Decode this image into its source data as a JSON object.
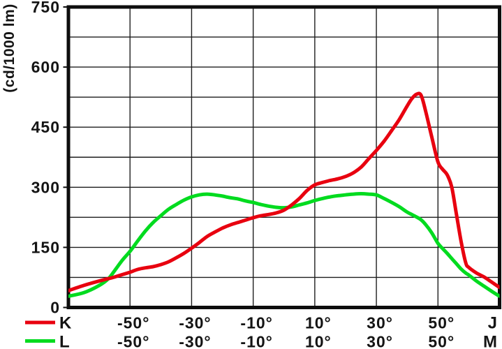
{
  "chart_data": {
    "type": "line",
    "title": "",
    "ylabel": "(cd/1000 lm)",
    "xlabel": "",
    "ylim": [
      0,
      750
    ],
    "xlim": [
      -70,
      70
    ],
    "y_major_ticks": [
      0,
      150,
      300,
      450,
      600,
      750
    ],
    "y_minor_step": 75,
    "x_grid_step_deg": 20,
    "x_tick_values": [
      -50,
      -30,
      -10,
      10,
      30,
      50
    ],
    "x_tick_labels": [
      "-50°",
      "-30°",
      "-10°",
      "10°",
      "30°",
      "50°"
    ],
    "grid": "on",
    "legend_position": "bottom-left",
    "angles_deg": [
      -70,
      -65,
      -60,
      -57,
      -55,
      -52.5,
      -50,
      -47.5,
      -45,
      -42.5,
      -40,
      -37.5,
      -35,
      -32.5,
      -30,
      -27.5,
      -25,
      -22.5,
      -20,
      -17.5,
      -15,
      -12.5,
      -10,
      -7.5,
      -5,
      -2.5,
      0,
      2.5,
      5,
      7.5,
      10,
      12.5,
      15,
      17.5,
      20,
      22.5,
      25,
      27.5,
      30,
      32.5,
      35,
      37.5,
      40,
      41.5,
      43,
      44.5,
      46,
      48,
      50,
      51.5,
      53,
      54.5,
      56,
      57.5,
      59,
      60,
      62.5,
      65,
      67.5,
      70
    ],
    "series": [
      {
        "name": "K",
        "color": "#e8000f",
        "axis_end_label": "J",
        "values": [
          42,
          55,
          66,
          72,
          76,
          82,
          88,
          95,
          99,
          102,
          107,
          114,
          124,
          135,
          148,
          162,
          177,
          188,
          198,
          206,
          212,
          218,
          224,
          229,
          232,
          236,
          243,
          256,
          272,
          292,
          306,
          312,
          317,
          321,
          327,
          336,
          350,
          371,
          392,
          415,
          442,
          470,
          503,
          521,
          532,
          530,
          490,
          425,
          363,
          345,
          331,
          300,
          232,
          165,
          112,
          100,
          86,
          76,
          63,
          50
        ]
      },
      {
        "name": "L",
        "color": "#00db1f",
        "axis_end_label": "M",
        "values": [
          28,
          37,
          55,
          72,
          92,
          118,
          140,
          166,
          191,
          212,
          229,
          245,
          257,
          268,
          276,
          281,
          283,
          281,
          278,
          274,
          271,
          266,
          262,
          257,
          253,
          250,
          249,
          251,
          256,
          261,
          267,
          272,
          276,
          279,
          281,
          283,
          284,
          283,
          281,
          272,
          262,
          251,
          238,
          232,
          226,
          219,
          207,
          186,
          160,
          147,
          135,
          122,
          109,
          96,
          86,
          81,
          66,
          53,
          40,
          28
        ]
      }
    ]
  },
  "colors": {
    "background": "#ffffff",
    "frame": "#0d0d0d",
    "grid": "#1e1e1e",
    "text": "#141414",
    "series_K": "#e8000f",
    "series_L": "#00db1f"
  }
}
